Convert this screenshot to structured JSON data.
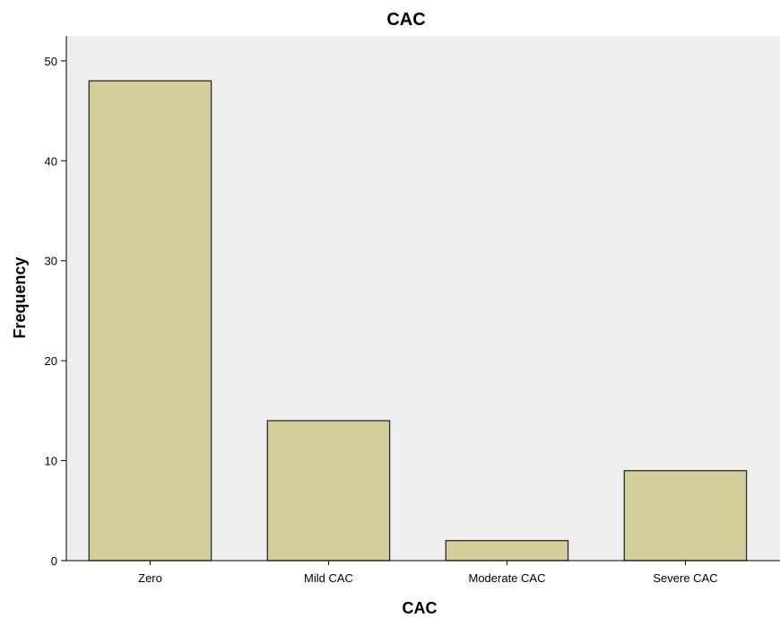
{
  "chart_data": {
    "type": "bar",
    "title": "CAC",
    "xlabel": "CAC",
    "ylabel": "Frequency",
    "categories": [
      "Zero",
      "Mild CAC",
      "Moderate CAC",
      "Severe CAC"
    ],
    "values": [
      48,
      14,
      2,
      9
    ],
    "ylim": [
      0,
      52.5
    ],
    "yticks": [
      "0",
      "10",
      "20",
      "30",
      "40",
      "50"
    ],
    "grid": false,
    "colors": {
      "bar_fill": "#d3ce9a",
      "bar_stroke": "#2b2b2b",
      "plot_background": "#efefef",
      "axis": "#000000"
    }
  }
}
